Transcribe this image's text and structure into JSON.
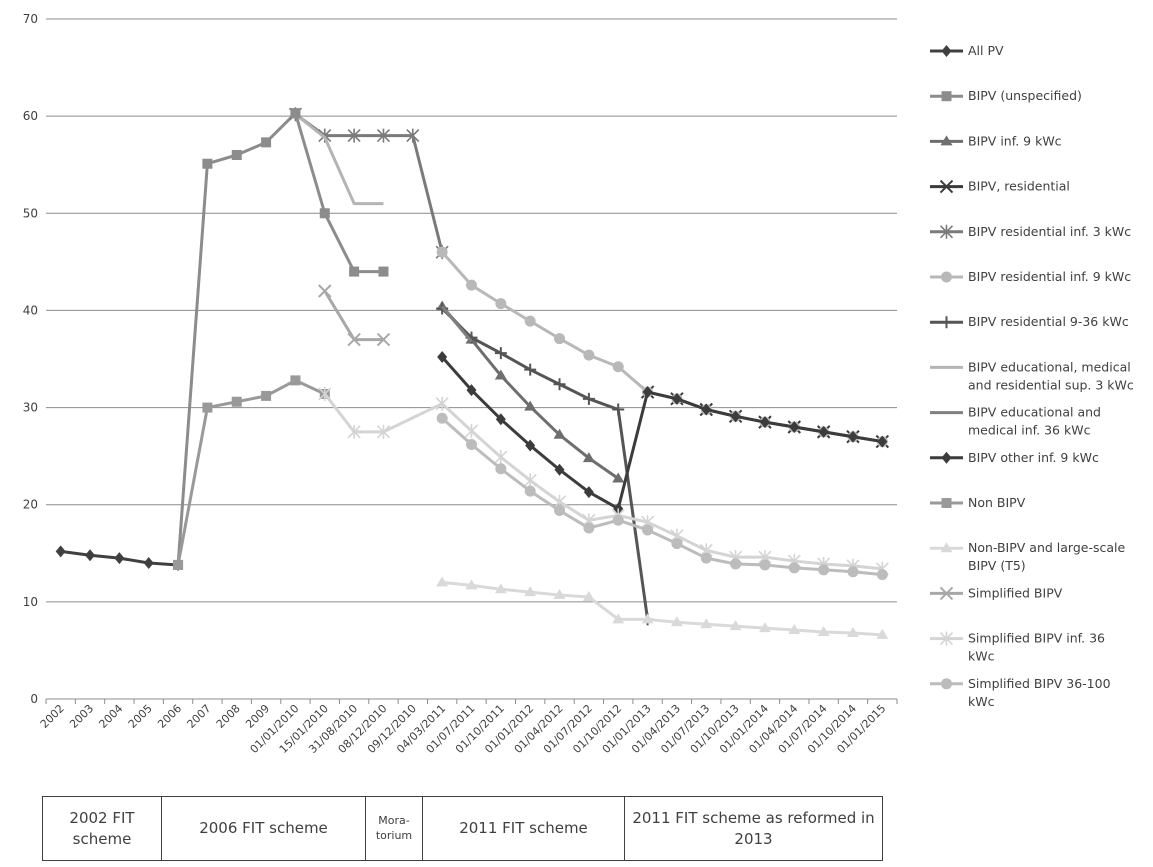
{
  "chart_data": {
    "type": "line",
    "categories": [
      "2002",
      "2003",
      "2004",
      "2005",
      "2006",
      "2007",
      "2008",
      "2009",
      "01/01/2010",
      "15/01/2010",
      "31/08/2010",
      "08/12/2010",
      "09/12/2010",
      "04/03/2011",
      "01/07/2011",
      "01/10/2011",
      "01/01/2012",
      "01/04/2012",
      "01/07/2012",
      "01/10/2012",
      "01/01/2013",
      "01/04/2013",
      "01/07/2013",
      "01/10/2013",
      "01/01/2014",
      "01/04/2014",
      "01/07/2014",
      "01/10/2014",
      "01/01/2015"
    ],
    "y_ticks": [
      0,
      10,
      20,
      30,
      40,
      50,
      60,
      70
    ],
    "ylim": [
      0,
      70
    ],
    "grid": true,
    "legend_position": "right",
    "series": [
      {
        "name": "All PV",
        "color": "#404040",
        "marker": "diamond",
        "values": [
          15.2,
          14.8,
          14.5,
          14.0,
          13.8,
          null,
          null,
          null,
          null,
          null,
          null,
          null,
          null,
          null,
          null,
          null,
          null,
          null,
          null,
          null,
          null,
          null,
          null,
          null,
          null,
          null,
          null,
          null,
          null
        ]
      },
      {
        "name": "BIPV (unspecified)",
        "color": "#8c8c8c",
        "marker": "square",
        "values": [
          null,
          null,
          null,
          null,
          13.8,
          55.1,
          56.0,
          57.3,
          60.3,
          null,
          null,
          null,
          null,
          null,
          null,
          null,
          null,
          null,
          null,
          null,
          null,
          null,
          null,
          null,
          null,
          null,
          null,
          null,
          null
        ]
      },
      {
        "name": "BIPV inf. 9 kWc",
        "color": "#6e6e6e",
        "marker": "triangle",
        "values": [
          null,
          null,
          null,
          null,
          null,
          null,
          null,
          null,
          null,
          null,
          null,
          null,
          null,
          40.4,
          37.0,
          33.3,
          30.1,
          27.2,
          24.8,
          22.7,
          null,
          null,
          null,
          null,
          null,
          null,
          null,
          null,
          null
        ]
      },
      {
        "name": "BIPV, residential",
        "color": "#3a3a3a",
        "marker": "x",
        "values": [
          null,
          null,
          null,
          null,
          null,
          null,
          null,
          null,
          null,
          null,
          null,
          null,
          null,
          null,
          null,
          null,
          null,
          null,
          null,
          null,
          31.6,
          30.9,
          29.8,
          29.1,
          28.5,
          28.0,
          27.5,
          27.0,
          26.5
        ]
      },
      {
        "name": "BIPV residential inf. 3 kWc",
        "color": "#7a7a7a",
        "marker": "star",
        "values": [
          null,
          null,
          null,
          null,
          null,
          null,
          null,
          null,
          60.2,
          58.0,
          58.0,
          58.0,
          58.0,
          46.0,
          null,
          null,
          null,
          null,
          null,
          null,
          null,
          null,
          null,
          null,
          null,
          null,
          null,
          null,
          null
        ]
      },
      {
        "name": "BIPV residential inf. 9 kWc",
        "color": "#b8b8b8",
        "marker": "circle",
        "values": [
          null,
          null,
          null,
          null,
          null,
          null,
          null,
          null,
          null,
          null,
          null,
          null,
          null,
          46.0,
          42.6,
          40.7,
          38.9,
          37.1,
          35.4,
          34.2,
          31.6,
          30.9,
          29.8,
          29.1,
          28.5,
          28.0,
          27.5,
          27.0,
          26.5
        ]
      },
      {
        "name": "BIPV residential 9-36 kWc",
        "color": "#555555",
        "marker": "plus",
        "values": [
          null,
          null,
          null,
          null,
          null,
          null,
          null,
          null,
          null,
          null,
          null,
          null,
          null,
          40.2,
          37.2,
          35.6,
          33.9,
          32.4,
          30.9,
          29.8,
          8.2,
          null,
          null,
          null,
          null,
          null,
          null,
          null,
          null
        ]
      },
      {
        "name": "BIPV educational, medical and residential sup. 3 kWc",
        "color": "#b4b4b4",
        "marker": "none",
        "values": [
          null,
          null,
          null,
          null,
          null,
          null,
          null,
          null,
          60.2,
          57.8,
          51.0,
          51.0,
          null,
          null,
          null,
          null,
          null,
          null,
          null,
          null,
          null,
          null,
          null,
          null,
          null,
          null,
          null,
          null,
          null
        ]
      },
      {
        "name": "BIPV educational and medical inf. 36 kWc",
        "color": "#7f7f7f",
        "marker": "none",
        "values": [
          null,
          null,
          null,
          null,
          null,
          null,
          null,
          null,
          null,
          null,
          null,
          null,
          null,
          40.4,
          36.8,
          null,
          null,
          null,
          null,
          null,
          null,
          null,
          null,
          null,
          null,
          null,
          null,
          null,
          null
        ]
      },
      {
        "name": "BIPV other inf. 9 kWc",
        "color": "#3c3c3c",
        "marker": "diamond",
        "values": [
          null,
          null,
          null,
          null,
          null,
          null,
          null,
          null,
          null,
          null,
          null,
          null,
          null,
          35.2,
          31.8,
          28.8,
          26.1,
          23.6,
          21.3,
          19.6,
          31.6,
          30.9,
          29.8,
          29.1,
          28.5,
          28.0,
          27.5,
          27.0,
          26.5
        ]
      },
      {
        "name": "Non BIPV",
        "color": "#999999",
        "marker": "square",
        "values": [
          null,
          null,
          null,
          null,
          13.8,
          30.0,
          30.6,
          31.2,
          32.8,
          31.4,
          null,
          null,
          null,
          null,
          null,
          null,
          null,
          null,
          null,
          null,
          null,
          null,
          null,
          null,
          null,
          null,
          null,
          null,
          null
        ]
      },
      {
        "name": "Non-BIPV and large-scale BIPV (T5)",
        "color": "#d9d9d9",
        "marker": "triangle",
        "values": [
          null,
          null,
          null,
          null,
          null,
          null,
          null,
          null,
          null,
          null,
          null,
          null,
          null,
          12.0,
          11.7,
          11.3,
          11.0,
          10.7,
          10.5,
          8.2,
          8.2,
          7.9,
          7.7,
          7.5,
          7.3,
          7.1,
          6.9,
          6.8,
          6.6
        ]
      },
      {
        "name": "Simplified BIPV",
        "color": "#a8a8a8",
        "marker": "x",
        "values": [
          null,
          null,
          null,
          null,
          null,
          null,
          null,
          null,
          null,
          42.0,
          37.0,
          37.0,
          null,
          null,
          null,
          null,
          null,
          null,
          null,
          null,
          null,
          null,
          null,
          null,
          null,
          null,
          null,
          null,
          null
        ]
      },
      {
        "name": "Simplified BIPV inf. 36 kWc",
        "color": "#d4d4d4",
        "marker": "star",
        "values": [
          null,
          null,
          null,
          null,
          null,
          null,
          null,
          null,
          null,
          31.4,
          27.5,
          27.5,
          null,
          30.4,
          27.6,
          24.9,
          22.5,
          20.3,
          18.4,
          18.9,
          18.2,
          16.8,
          15.3,
          14.6,
          14.6,
          14.2,
          13.9,
          13.7,
          13.4
        ]
      },
      {
        "name": "Simplified BIPV 36-100 kWc",
        "color": "#bcbcbc",
        "marker": "circle",
        "values": [
          null,
          null,
          null,
          null,
          null,
          null,
          null,
          null,
          null,
          null,
          null,
          null,
          null,
          28.9,
          26.2,
          23.7,
          21.4,
          19.4,
          17.6,
          18.4,
          17.4,
          16.0,
          14.5,
          13.9,
          13.8,
          13.5,
          13.3,
          13.1,
          12.8
        ]
      }
    ],
    "extra_segments": [
      {
        "series": "BIPV (unspecified)",
        "color": "#8c8c8c",
        "marker": "square",
        "points": [
          [
            8,
            60.3
          ],
          [
            9,
            50.0
          ],
          [
            10,
            44.0
          ],
          [
            11,
            44.0
          ]
        ]
      }
    ]
  },
  "legend_labels": [
    [
      "All PV"
    ],
    [
      "BIPV (unspecified)"
    ],
    [
      "BIPV inf. 9 kWc"
    ],
    [
      "BIPV, residential"
    ],
    [
      "BIPV residential inf. 3 kWc"
    ],
    [
      "BIPV residential inf. 9 kWc"
    ],
    [
      "BIPV residential 9-36 kWc"
    ],
    [
      "BIPV educational, medical",
      "and residential sup. 3 kWc"
    ],
    [
      "BIPV educational and",
      "medical inf. 36 kWc"
    ],
    [
      "BIPV other inf. 9 kWc"
    ],
    [
      "Non BIPV"
    ],
    [
      "Non-BIPV and large-scale",
      "BIPV (T5)"
    ],
    [
      "Simplified BIPV"
    ],
    [
      "Simplified BIPV inf. 36",
      "kWc"
    ],
    [
      "Simplified BIPV 36-100",
      "kWc"
    ]
  ],
  "schemes": [
    {
      "label": "2002 FIT scheme"
    },
    {
      "label": "2006 FIT scheme"
    },
    {
      "label": "Mora-torium"
    },
    {
      "label": "2011 FIT scheme"
    },
    {
      "label": "2011 FIT scheme as reformed in 2013"
    }
  ]
}
